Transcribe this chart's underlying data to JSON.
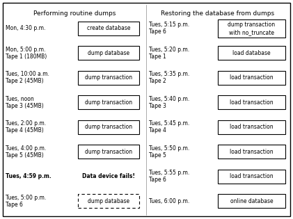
{
  "title_left": "Performing routine dumps",
  "title_right": "Restoring the database from dumps",
  "left_rows": [
    {
      "label": "Mon, 4:30 p.m.",
      "label2": "",
      "box_text": "create database",
      "bold": false,
      "dashed": false,
      "no_box": false
    },
    {
      "label": "Mon, 5:00 p.m.",
      "label2": "Tape 1 (180MB)",
      "box_text": "dump database",
      "bold": false,
      "dashed": false,
      "no_box": false
    },
    {
      "label": "Tues, 10:00 a.m.",
      "label2": "Tape 2 (45MB)",
      "box_text": "dump transaction",
      "bold": false,
      "dashed": false,
      "no_box": false
    },
    {
      "label": "Tues, noon",
      "label2": "Tape 3 (45MB)",
      "box_text": "dump transaction",
      "bold": false,
      "dashed": false,
      "no_box": false
    },
    {
      "label": "Tues, 2:00 p.m.",
      "label2": "Tape 4 (45MB)",
      "box_text": "dump transaction",
      "bold": false,
      "dashed": false,
      "no_box": false
    },
    {
      "label": "Tues, 4:00 p.m.",
      "label2": "Tape 5 (45MB)",
      "box_text": "dump transaction",
      "bold": false,
      "dashed": false,
      "no_box": false
    },
    {
      "label": "Tues, 4:59 p.m.",
      "label2": "",
      "box_text": "Data device fails!",
      "bold": true,
      "dashed": false,
      "no_box": true
    },
    {
      "label": "Tues, 5:00 p.m.",
      "label2": "Tape 6",
      "box_text": "dump database",
      "bold": false,
      "dashed": true,
      "no_box": false
    }
  ],
  "right_rows": [
    {
      "label": "Tues, 5:15 p.m.",
      "label2": "Tape 6",
      "box_text": "dump transaction\nwith no_truncate",
      "bold": false,
      "dashed": false
    },
    {
      "label": "Tues, 5:20 p.m.",
      "label2": "Tape 1",
      "box_text": "load database",
      "bold": false,
      "dashed": false
    },
    {
      "label": "Tues, 5:35 p.m.",
      "label2": "Tape 2",
      "box_text": "load transaction",
      "bold": false,
      "dashed": false
    },
    {
      "label": "Tues, 5:40 p.m.",
      "label2": "Tape 3",
      "box_text": "load transaction",
      "bold": false,
      "dashed": false
    },
    {
      "label": "Tues, 5:45 p.m.",
      "label2": "Tape 4",
      "box_text": "load transaction",
      "bold": false,
      "dashed": false
    },
    {
      "label": "Tues, 5:50 p.m.",
      "label2": "Tape 5",
      "box_text": "load transaction",
      "bold": false,
      "dashed": false
    },
    {
      "label": "Tues, 5:55 p.m.",
      "label2": "Tape 6",
      "box_text": "load transaction",
      "bold": false,
      "dashed": false
    },
    {
      "label": "Tues, 6:00 p.m.",
      "label2": "",
      "box_text": "online database",
      "bold": false,
      "dashed": false
    }
  ],
  "bg_color": "#ffffff",
  "border_color": "#000000",
  "box_color": "#ffffff",
  "text_color": "#000000",
  "font_size": 5.5,
  "title_font_size": 6.5
}
